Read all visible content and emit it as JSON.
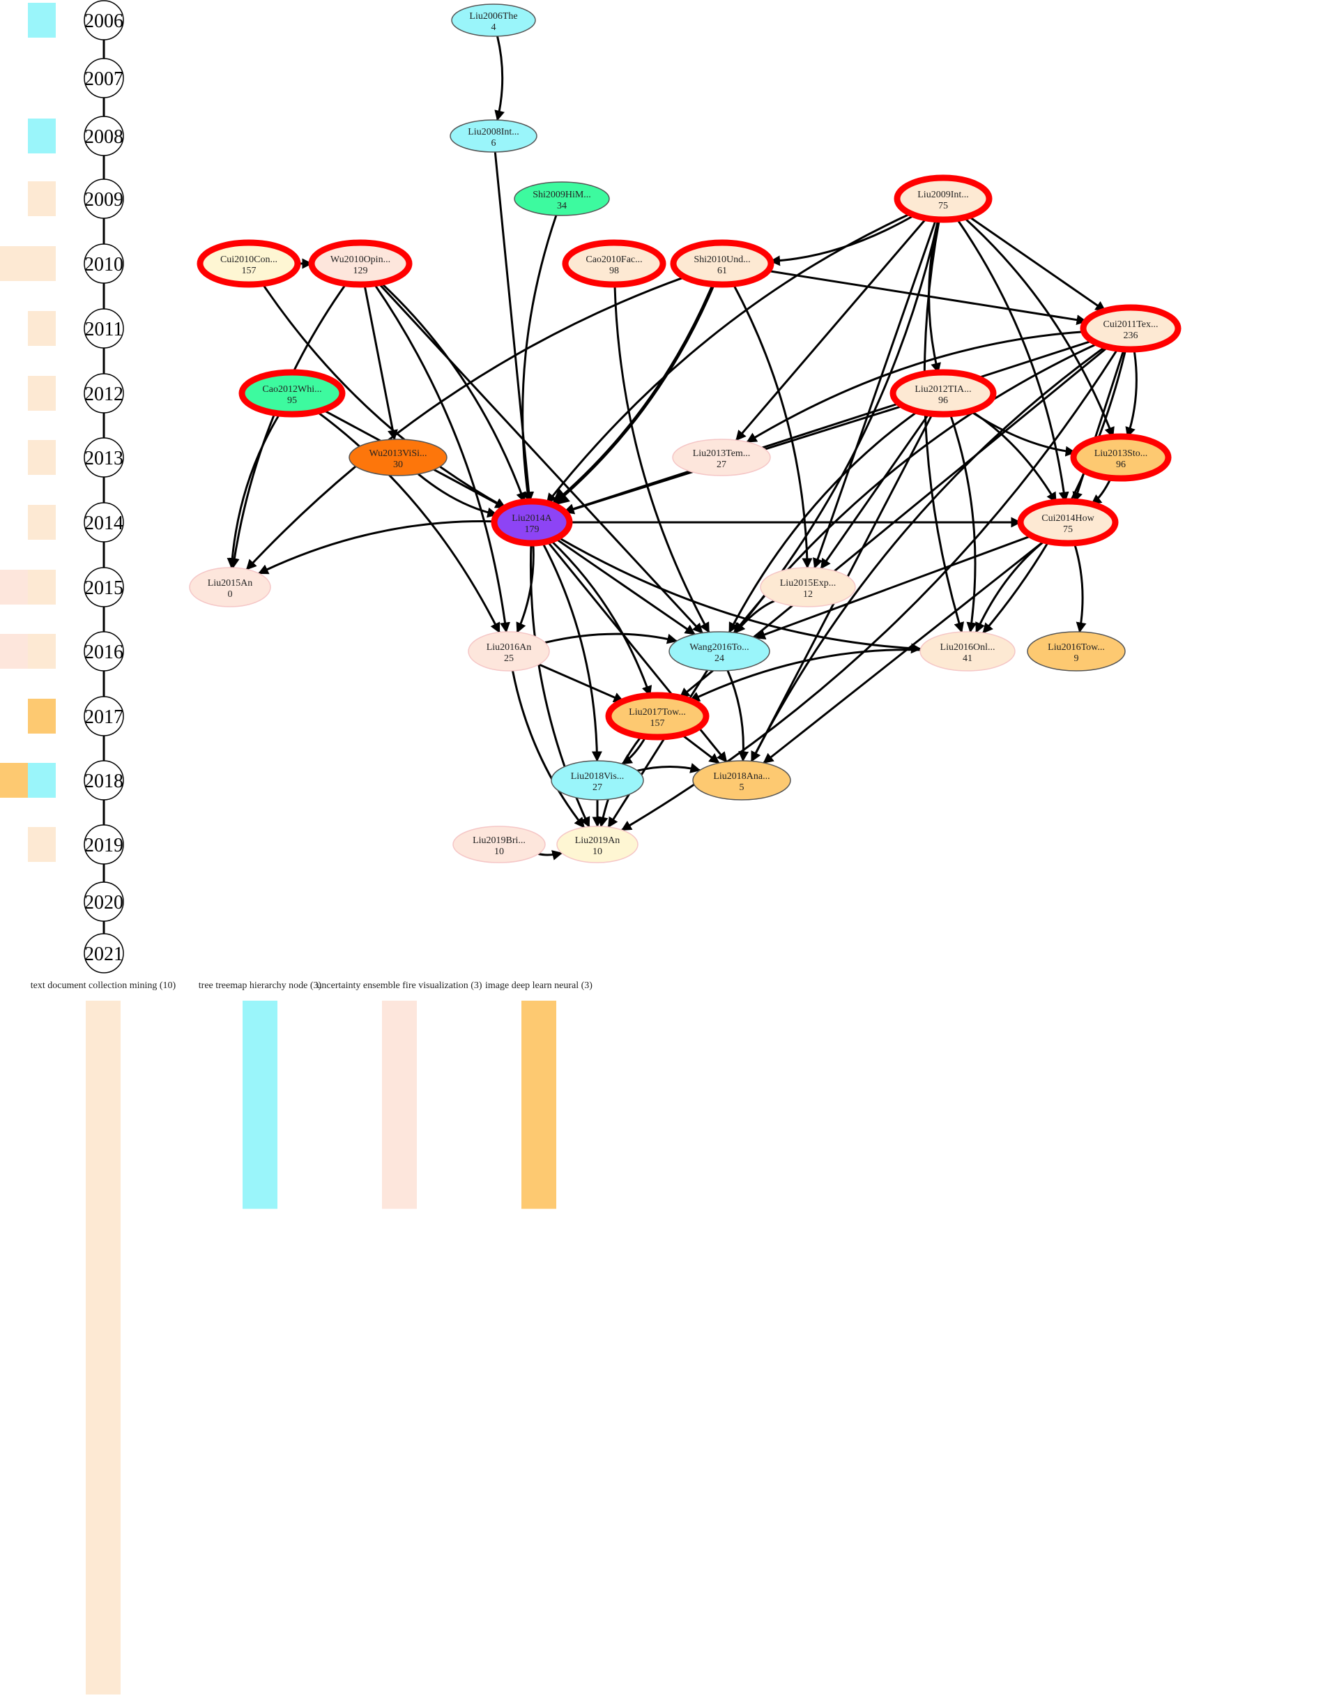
{
  "years": [
    "2006",
    "2007",
    "2008",
    "2009",
    "2010",
    "2011",
    "2012",
    "2013",
    "2014",
    "2015",
    "2016",
    "2017",
    "2018",
    "2019",
    "2020",
    "2021"
  ],
  "topic_colors": {
    "t0": "#fde9d3",
    "t1": "#9af5fa",
    "t2": "#fde6dc",
    "t3": "#fdc971"
  },
  "year_blocks": [
    {
      "year": "2006",
      "topics": [
        "t1"
      ]
    },
    {
      "year": "2008",
      "topics": [
        "t1"
      ]
    },
    {
      "year": "2009",
      "topics": [
        "t0"
      ]
    },
    {
      "year": "2010",
      "topics": [
        "t2",
        "t0",
        "t0"
      ]
    },
    {
      "year": "2011",
      "topics": [
        "t0"
      ]
    },
    {
      "year": "2012",
      "topics": [
        "t0"
      ]
    },
    {
      "year": "2013",
      "topics": [
        "t0"
      ]
    },
    {
      "year": "2014",
      "topics": [
        "t0"
      ]
    },
    {
      "year": "2015",
      "topics": [
        "t2",
        "t0"
      ]
    },
    {
      "year": "2016",
      "topics": [
        "t3",
        "t2",
        "t0"
      ]
    },
    {
      "year": "2017",
      "topics": [
        "t3"
      ]
    },
    {
      "year": "2018",
      "topics": [
        "t3",
        "t1"
      ]
    },
    {
      "year": "2019",
      "topics": [
        "t0"
      ]
    }
  ],
  "topics": [
    {
      "id": "t0",
      "label": "text document collection mining (10)",
      "count": 10
    },
    {
      "id": "t1",
      "label": "tree treemap hierarchy node (3)",
      "count": 3
    },
    {
      "id": "t2",
      "label": "uncertainty ensemble fire visualization (3)",
      "count": 3
    },
    {
      "id": "t3",
      "label": "image deep learn neural (3)",
      "count": 3
    }
  ],
  "nodes": [
    {
      "id": "Liu2006The",
      "label": "Liu2006The",
      "value": "4",
      "year": "2006",
      "fill": "#9af5fa",
      "highlight": false
    },
    {
      "id": "Liu2008Int",
      "label": "Liu2008Int...",
      "value": "6",
      "year": "2008",
      "fill": "#9af5fa",
      "highlight": false
    },
    {
      "id": "Shi2009HiM",
      "label": "Shi2009HiM...",
      "value": "34",
      "year": "2009",
      "fill": "#3dfa9f",
      "highlight": false
    },
    {
      "id": "Liu2009Int",
      "label": "Liu2009Int...",
      "value": "75",
      "year": "2009",
      "fill": "#fde9d3",
      "highlight": true
    },
    {
      "id": "Cui2010Con",
      "label": "Cui2010Con...",
      "value": "157",
      "year": "2010",
      "fill": "#fef6d3",
      "highlight": true
    },
    {
      "id": "Wu2010Opin",
      "label": "Wu2010Opin...",
      "value": "129",
      "year": "2010",
      "fill": "#fde6dc",
      "highlight": true
    },
    {
      "id": "Cao2010Fac",
      "label": "Cao2010Fac...",
      "value": "98",
      "year": "2010",
      "fill": "#fde9d3",
      "highlight": true
    },
    {
      "id": "Shi2010Und",
      "label": "Shi2010Und...",
      "value": "61",
      "year": "2010",
      "fill": "#fde9d3",
      "highlight": true
    },
    {
      "id": "Cui2011Tex",
      "label": "Cui2011Tex...",
      "value": "236",
      "year": "2011",
      "fill": "#fde9d3",
      "highlight": true
    },
    {
      "id": "Cao2012Whi",
      "label": "Cao2012Whi...",
      "value": "95",
      "year": "2012",
      "fill": "#3dfa9f",
      "highlight": true
    },
    {
      "id": "Liu2012TIA",
      "label": "Liu2012TIA...",
      "value": "96",
      "year": "2012",
      "fill": "#fde9d3",
      "highlight": true
    },
    {
      "id": "Wu2013ViSi",
      "label": "Wu2013ViSi...",
      "value": "30",
      "year": "2013",
      "fill": "#fd760b",
      "highlight": false
    },
    {
      "id": "Liu2013Tem",
      "label": "Liu2013Tem...",
      "value": "27",
      "year": "2013",
      "fill": "#fde6dc",
      "highlight": false
    },
    {
      "id": "Liu2013Sto",
      "label": "Liu2013Sto...",
      "value": "96",
      "year": "2013",
      "fill": "#fdc971",
      "highlight": true
    },
    {
      "id": "Liu2014A",
      "label": "Liu2014A",
      "value": "179",
      "year": "2014",
      "fill": "#8d44f5",
      "highlight": true
    },
    {
      "id": "Cui2014How",
      "label": "Cui2014How",
      "value": "75",
      "year": "2014",
      "fill": "#fde9d3",
      "highlight": true
    },
    {
      "id": "Liu2015An",
      "label": "Liu2015An",
      "value": "0",
      "year": "2015",
      "fill": "#fde6dc",
      "highlight": false
    },
    {
      "id": "Liu2015Exp",
      "label": "Liu2015Exp...",
      "value": "12",
      "year": "2015",
      "fill": "#fde9d3",
      "highlight": false
    },
    {
      "id": "Liu2016An",
      "label": "Liu2016An",
      "value": "25",
      "year": "2016",
      "fill": "#fde6dc",
      "highlight": false
    },
    {
      "id": "Wang2016To",
      "label": "Wang2016To...",
      "value": "24",
      "year": "2016",
      "fill": "#9af5fa",
      "highlight": false
    },
    {
      "id": "Liu2016Onl",
      "label": "Liu2016Onl...",
      "value": "41",
      "year": "2016",
      "fill": "#fde9d3",
      "highlight": false
    },
    {
      "id": "Liu2016Tow",
      "label": "Liu2016Tow...",
      "value": "9",
      "year": "2016",
      "fill": "#fdc971",
      "highlight": false
    },
    {
      "id": "Liu2017Tow",
      "label": "Liu2017Tow...",
      "value": "157",
      "year": "2017",
      "fill": "#fdc971",
      "highlight": true
    },
    {
      "id": "Liu2018Vis",
      "label": "Liu2018Vis...",
      "value": "27",
      "year": "2018",
      "fill": "#9af5fa",
      "highlight": false
    },
    {
      "id": "Liu2018Ana",
      "label": "Liu2018Ana...",
      "value": "5",
      "year": "2018",
      "fill": "#fdc971",
      "highlight": false
    },
    {
      "id": "Liu2019Bri",
      "label": "Liu2019Bri...",
      "value": "10",
      "year": "2019",
      "fill": "#fde6dc",
      "highlight": false
    },
    {
      "id": "Liu2019An",
      "label": "Liu2019An",
      "value": "10",
      "year": "2019",
      "fill": "#fef6d3",
      "highlight": false
    }
  ],
  "edges": [
    [
      "Liu2006The",
      "Liu2008Int"
    ],
    [
      "Liu2008Int",
      "Liu2014A"
    ],
    [
      "Shi2009HiM",
      "Liu2014A"
    ],
    [
      "Liu2009Int",
      "Shi2010Und"
    ],
    [
      "Liu2009Int",
      "Cui2011Tex"
    ],
    [
      "Liu2009Int",
      "Liu2012TIA"
    ],
    [
      "Liu2009Int",
      "Liu2013Sto"
    ],
    [
      "Liu2009Int",
      "Liu2013Tem"
    ],
    [
      "Liu2009Int",
      "Liu2014A"
    ],
    [
      "Liu2009Int",
      "Cui2014How"
    ],
    [
      "Liu2009Int",
      "Liu2015Exp"
    ],
    [
      "Liu2009Int",
      "Liu2016Onl"
    ],
    [
      "Liu2009Int",
      "Wang2016To"
    ],
    [
      "Cui2010Con",
      "Wu2010Opin"
    ],
    [
      "Cui2010Con",
      "Liu2014A"
    ],
    [
      "Wu2010Opin",
      "Liu2014A"
    ],
    [
      "Wu2010Opin",
      "Wu2013ViSi"
    ],
    [
      "Wu2010Opin",
      "Liu2015An"
    ],
    [
      "Wu2010Opin",
      "Liu2016An"
    ],
    [
      "Wu2010Opin",
      "Wang2016To"
    ],
    [
      "Cao2010Fac",
      "Wang2016To"
    ],
    [
      "Shi2010Und",
      "Liu2014A"
    ],
    [
      "Shi2010Und",
      "Cui2011Tex"
    ],
    [
      "Shi2010Und",
      "Liu2015An"
    ],
    [
      "Shi2010Und",
      "Liu2015Exp"
    ],
    [
      "Cui2011Tex",
      "Liu2014A"
    ],
    [
      "Cui2011Tex",
      "Liu2013Tem"
    ],
    [
      "Cui2011Tex",
      "Liu2013Sto"
    ],
    [
      "Cui2011Tex",
      "Cui2014How"
    ],
    [
      "Cui2011Tex",
      "Wang2016To"
    ],
    [
      "Cui2011Tex",
      "Liu2016Onl"
    ],
    [
      "Cui2011Tex",
      "Liu2017Tow"
    ],
    [
      "Cui2011Tex",
      "Liu2018Ana"
    ],
    [
      "Cui2011Tex",
      "Liu2019An"
    ],
    [
      "Cao2012Whi",
      "Liu2014A"
    ],
    [
      "Cao2012Whi",
      "Liu2015An"
    ],
    [
      "Cao2012Whi",
      "Liu2016An"
    ],
    [
      "Liu2012TIA",
      "Liu2014A"
    ],
    [
      "Liu2012TIA",
      "Liu2013Sto"
    ],
    [
      "Liu2012TIA",
      "Cui2014How"
    ],
    [
      "Liu2012TIA",
      "Liu2015Exp"
    ],
    [
      "Liu2012TIA",
      "Wang2016To"
    ],
    [
      "Liu2012TIA",
      "Liu2016Onl"
    ],
    [
      "Liu2012TIA",
      "Liu2018Ana"
    ],
    [
      "Wu2013ViSi",
      "Liu2014A"
    ],
    [
      "Liu2013Sto",
      "Cui2014How"
    ],
    [
      "Liu2014A",
      "Cui2014How"
    ],
    [
      "Liu2014A",
      "Liu2015An"
    ],
    [
      "Liu2014A",
      "Liu2016An"
    ],
    [
      "Liu2014A",
      "Wang2016To"
    ],
    [
      "Liu2014A",
      "Liu2016Onl"
    ],
    [
      "Liu2014A",
      "Liu2018Vis"
    ],
    [
      "Liu2014A",
      "Liu2018Ana"
    ],
    [
      "Liu2014A",
      "Liu2019An"
    ],
    [
      "Liu2014A",
      "Liu2017Tow"
    ],
    [
      "Cui2014How",
      "Wang2016To"
    ],
    [
      "Cui2014How",
      "Liu2016Onl"
    ],
    [
      "Cui2014How",
      "Liu2016Tow"
    ],
    [
      "Cui2014How",
      "Liu2018Ana"
    ],
    [
      "Liu2015Exp",
      "Wang2016To"
    ],
    [
      "Liu2016An",
      "Wang2016To"
    ],
    [
      "Liu2016An",
      "Liu2017Tow"
    ],
    [
      "Liu2016An",
      "Liu2019An"
    ],
    [
      "Wang2016To",
      "Liu2018Ana"
    ],
    [
      "Wang2016To",
      "Liu2019An"
    ],
    [
      "Liu2016Onl",
      "Liu2017Tow"
    ],
    [
      "Liu2017Tow",
      "Liu2018Vis"
    ],
    [
      "Liu2017Tow",
      "Liu2018Ana"
    ],
    [
      "Liu2017Tow",
      "Liu2019An"
    ],
    [
      "Liu2018Vis",
      "Liu2018Ana"
    ],
    [
      "Liu2018Vis",
      "Liu2019An"
    ],
    [
      "Liu2019Bri",
      "Liu2019An"
    ]
  ]
}
